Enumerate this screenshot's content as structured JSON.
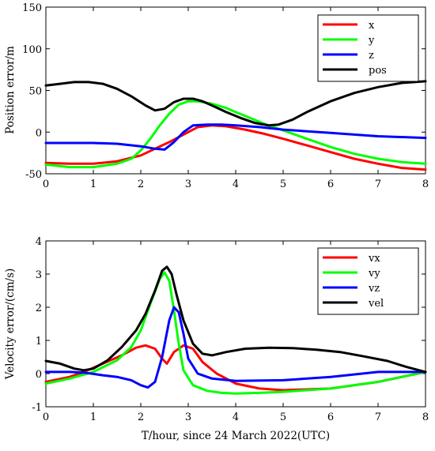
{
  "chart_data": [
    {
      "type": "line",
      "title": "",
      "xlabel": "",
      "ylabel": "Position error/m",
      "xlim": [
        0,
        8
      ],
      "ylim": [
        -50,
        150
      ],
      "xticks": [
        "0",
        "1",
        "2",
        "3",
        "4",
        "5",
        "6",
        "7",
        "8"
      ],
      "yticks": [
        "-50",
        "0",
        "50",
        "100",
        "150"
      ],
      "legend_position": "top-right",
      "grid": false,
      "series": [
        {
          "name": "x",
          "color": "#ff0000",
          "x": [
            0,
            0.5,
            1,
            1.5,
            2,
            2.3,
            2.6,
            2.9,
            3.2,
            3.5,
            3.8,
            4.2,
            4.6,
            5,
            5.5,
            6,
            6.5,
            7,
            7.5,
            8
          ],
          "y": [
            -37,
            -38,
            -38,
            -35,
            -28,
            -20,
            -12,
            -3,
            6,
            8,
            7,
            3,
            -2,
            -8,
            -16,
            -24,
            -32,
            -38,
            -43,
            -45
          ]
        },
        {
          "name": "y",
          "color": "#00ff00",
          "x": [
            0,
            0.5,
            1,
            1.5,
            1.8,
            2,
            2.2,
            2.4,
            2.6,
            2.8,
            3,
            3.2,
            3.5,
            3.8,
            4,
            4.3,
            4.6,
            5,
            5.5,
            6,
            6.5,
            7,
            7.5,
            8
          ],
          "y": [
            -39,
            -42,
            -42,
            -38,
            -32,
            -22,
            -8,
            8,
            22,
            33,
            37,
            37,
            34,
            29,
            24,
            17,
            10,
            2,
            -8,
            -18,
            -26,
            -32,
            -36,
            -38
          ]
        },
        {
          "name": "z",
          "color": "#0000ff",
          "x": [
            0,
            0.5,
            1,
            1.5,
            2,
            2.3,
            2.5,
            2.7,
            2.9,
            3.1,
            3.4,
            3.7,
            4,
            4.5,
            5,
            6,
            7,
            8
          ],
          "y": [
            -13,
            -13,
            -13,
            -14,
            -17,
            -20,
            -21,
            -12,
            0,
            8,
            9,
            9,
            8,
            6,
            3,
            -1,
            -5,
            -7
          ]
        },
        {
          "name": "pos",
          "color": "#000000",
          "x": [
            0,
            0.3,
            0.6,
            0.9,
            1.2,
            1.5,
            1.8,
            2.1,
            2.3,
            2.5,
            2.7,
            2.9,
            3.1,
            3.3,
            3.5,
            3.8,
            4.1,
            4.4,
            4.7,
            4.9,
            5.2,
            5.5,
            6,
            6.5,
            7,
            7.5,
            8
          ],
          "y": [
            56,
            58,
            60,
            60,
            58,
            52,
            43,
            32,
            26,
            28,
            36,
            40,
            40,
            37,
            32,
            24,
            17,
            11,
            8,
            9,
            15,
            24,
            37,
            47,
            54,
            59,
            61
          ]
        }
      ]
    },
    {
      "type": "line",
      "title": "",
      "xlabel": "T/hour, since  24 March 2022(UTC)",
      "ylabel": "Velocity error/(cm/s)",
      "xlim": [
        0,
        8
      ],
      "ylim": [
        -1,
        4
      ],
      "xticks": [
        "0",
        "1",
        "2",
        "3",
        "4",
        "5",
        "6",
        "7",
        "8"
      ],
      "yticks": [
        "-1",
        "0",
        "1",
        "2",
        "3",
        "4"
      ],
      "legend_position": "top-right",
      "grid": false,
      "series": [
        {
          "name": "vx",
          "color": "#ff0000",
          "x": [
            0,
            0.5,
            0.8,
            1.2,
            1.6,
            1.9,
            2.1,
            2.3,
            2.45,
            2.55,
            2.7,
            2.9,
            3.1,
            3.3,
            3.6,
            4,
            4.5,
            5,
            6,
            7,
            8
          ],
          "y": [
            -0.25,
            -0.1,
            0.05,
            0.3,
            0.55,
            0.78,
            0.85,
            0.75,
            0.45,
            0.3,
            0.65,
            0.85,
            0.75,
            0.35,
            0.0,
            -0.3,
            -0.45,
            -0.5,
            -0.45,
            -0.25,
            0.05
          ]
        },
        {
          "name": "vy",
          "color": "#00ff00",
          "x": [
            0,
            0.5,
            1,
            1.5,
            1.8,
            2,
            2.2,
            2.4,
            2.5,
            2.6,
            2.7,
            2.8,
            2.9,
            3.1,
            3.4,
            3.7,
            4,
            4.5,
            5,
            6,
            7,
            8
          ],
          "y": [
            -0.3,
            -0.15,
            0.05,
            0.4,
            0.8,
            1.3,
            2.1,
            2.85,
            3.05,
            2.8,
            1.9,
            0.9,
            0.1,
            -0.35,
            -0.52,
            -0.58,
            -0.6,
            -0.58,
            -0.55,
            -0.45,
            -0.25,
            0.05
          ]
        },
        {
          "name": "vz",
          "color": "#0000ff",
          "x": [
            0,
            0.5,
            0.8,
            1.2,
            1.5,
            1.8,
            2,
            2.15,
            2.3,
            2.45,
            2.6,
            2.7,
            2.8,
            2.9,
            3,
            3.2,
            3.5,
            4,
            5,
            6,
            7,
            8
          ],
          "y": [
            0.05,
            0.05,
            0.03,
            -0.05,
            -0.1,
            -0.2,
            -0.35,
            -0.42,
            -0.25,
            0.5,
            1.6,
            2.0,
            1.85,
            1.2,
            0.45,
            0.0,
            -0.15,
            -0.22,
            -0.2,
            -0.1,
            0.05,
            0.05
          ]
        },
        {
          "name": "vel",
          "color": "#000000",
          "x": [
            0,
            0.3,
            0.6,
            0.8,
            1,
            1.3,
            1.6,
            1.9,
            2.1,
            2.3,
            2.45,
            2.55,
            2.65,
            2.75,
            2.9,
            3.1,
            3.3,
            3.5,
            3.8,
            4.2,
            4.7,
            5.2,
            5.7,
            6.2,
            6.7,
            7.2,
            7.6,
            8
          ],
          "y": [
            0.38,
            0.3,
            0.15,
            0.1,
            0.15,
            0.4,
            0.8,
            1.3,
            1.8,
            2.5,
            3.1,
            3.22,
            3.0,
            2.4,
            1.6,
            0.9,
            0.6,
            0.55,
            0.65,
            0.75,
            0.78,
            0.77,
            0.72,
            0.65,
            0.52,
            0.38,
            0.2,
            0.05
          ]
        }
      ]
    }
  ]
}
